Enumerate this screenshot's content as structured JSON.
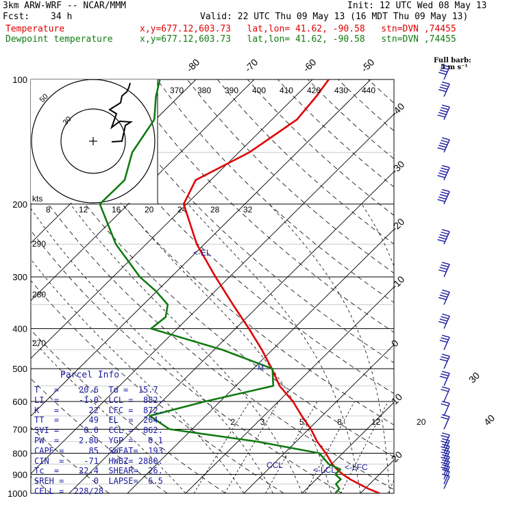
{
  "header": {
    "model": "3km ARW-WRF -- NCAR/MMM",
    "init": "Init: 12 UTC Wed 08 May 13",
    "fcst_label": "Fcst:",
    "fcst_value": "34 h",
    "valid": "Valid: 22 UTC Thu 09 May 13 (16 MDT Thu 09 May 13)",
    "temp_label": "Temperature",
    "dew_label": "Dewpoint temperature",
    "loc_line": "x,y=677.12,603.73   lat,lon= 41.62, -90.58   stn=DVN ,74455"
  },
  "barb_key": {
    "title": "Full barb:",
    "value": "5 m s⁻¹"
  },
  "parcel_info": {
    "title": "Parcel Info",
    "rows": [
      "T   =    20.6  Td =  15.7",
      "LI  =    -1.0  LCL =  882.",
      "K   =      22  LFC =  872.",
      "TT  =      49  EL  =  264.",
      "SVI =     0.0  CCL =  862.",
      "PW  =    2.80  YGP =   0.1",
      "CAPE =     85  SWEAT=  193",
      "CIN  =    -71  HWBZ= 2880.",
      "Tc  =    22.4  SHEAR=  26.",
      "SREH =      0  LAPSE=  6.5",
      "CELL =  228/28"
    ]
  },
  "chart_data": {
    "type": "line",
    "title": "Skew-T log-P sounding",
    "ylabel": "",
    "xlabel": "",
    "pressure_ticks": [
      100,
      200,
      300,
      400,
      500,
      600,
      700,
      800,
      900,
      1000
    ],
    "pressure_range": [
      100,
      1000
    ],
    "isotherm_labels": [
      -80,
      -70,
      -60,
      -50,
      -40,
      -30,
      -20,
      -10,
      0,
      10,
      20,
      30,
      40
    ],
    "theta_labels_top": [
      370,
      380,
      390,
      400,
      410,
      420,
      430,
      440
    ],
    "theta_labels_left": [
      290,
      280,
      270
    ],
    "mixing_ratio_labels": [
      2,
      3,
      5,
      8,
      12,
      20
    ],
    "hodograph": {
      "speed_unit": "kts",
      "ring_labels": [
        30,
        50
      ],
      "axis_labels": [
        8,
        12,
        16,
        20,
        24,
        28,
        32
      ]
    },
    "annotations": {
      "el": "<-EL",
      "ccl": "CCL",
      "lcl": "<-LCL",
      "lfc": "<-LFC",
      "m": "M"
    },
    "series": [
      {
        "name": "Temperature",
        "color": "#e00000",
        "pressure": [
          1000,
          975,
          950,
          925,
          900,
          875,
          850,
          800,
          750,
          700,
          650,
          600,
          550,
          500,
          450,
          400,
          350,
          300,
          250,
          200,
          175,
          150,
          125,
          110,
          100
        ],
        "value": [
          23.3,
          20.6,
          18.2,
          15.8,
          13.7,
          11.8,
          10.1,
          7.1,
          3.6,
          0.4,
          -3.5,
          -7.5,
          -12.5,
          -16.8,
          -21.8,
          -27.7,
          -34.6,
          -42.4,
          -51.3,
          -60.5,
          -62.6,
          -58.2,
          -55.7,
          -56.4,
          -57.2
        ]
      },
      {
        "name": "Dewpoint temperature",
        "color": "#107a10",
        "pressure": [
          1000,
          975,
          950,
          925,
          900,
          875,
          850,
          800,
          750,
          700,
          650,
          600,
          550,
          500,
          450,
          400,
          375,
          350,
          325,
          300,
          250,
          200,
          175,
          150,
          125,
          110,
          100
        ],
        "value": [
          15.7,
          15.6,
          14.2,
          14.2,
          12.4,
          12.4,
          9.5,
          6.0,
          -6.7,
          -23.9,
          -29.6,
          -22.6,
          -13.6,
          -16.7,
          -28.6,
          -44.5,
          -44.0,
          -45.8,
          -50.1,
          -55.4,
          -65.2,
          -74.9,
          -74.8,
          -78.3,
          -80.2,
          -83.9,
          -86.2
        ]
      }
    ],
    "wind_barbs": [
      {
        "p": 975,
        "speed_ms": 5
      },
      {
        "p": 950,
        "speed_ms": 5
      },
      {
        "p": 925,
        "speed_ms": 8
      },
      {
        "p": 900,
        "speed_ms": 10
      },
      {
        "p": 875,
        "speed_ms": 11
      },
      {
        "p": 850,
        "speed_ms": 11
      },
      {
        "p": 825,
        "speed_ms": 12
      },
      {
        "p": 800,
        "speed_ms": 12
      },
      {
        "p": 775,
        "speed_ms": 12
      },
      {
        "p": 700,
        "speed_ms": 12
      },
      {
        "p": 650,
        "speed_ms": 12
      },
      {
        "p": 600,
        "speed_ms": 12
      },
      {
        "p": 550,
        "speed_ms": 13
      },
      {
        "p": 500,
        "speed_ms": 15
      },
      {
        "p": 450,
        "speed_ms": 16
      },
      {
        "p": 400,
        "speed_ms": 18
      },
      {
        "p": 350,
        "speed_ms": 20
      },
      {
        "p": 300,
        "speed_ms": 22
      },
      {
        "p": 250,
        "speed_ms": 23
      },
      {
        "p": 200,
        "speed_ms": 25
      },
      {
        "p": 175,
        "speed_ms": 25
      },
      {
        "p": 150,
        "speed_ms": 25
      },
      {
        "p": 125,
        "speed_ms": 25
      },
      {
        "p": 110,
        "speed_ms": 22
      },
      {
        "p": 100,
        "speed_ms": 22
      }
    ]
  }
}
